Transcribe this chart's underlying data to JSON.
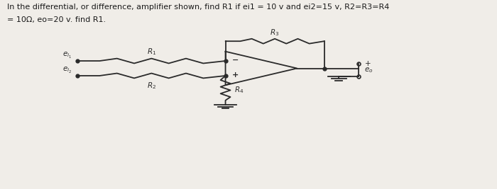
{
  "title_line1": "In the differential, or difference, amplifier shown, find R1 if ei1 = 10 v and ei2=15 v, R2=R3=R4",
  "title_line2": "= 10Ω, eo=20 v. find R1.",
  "bg_color": "#f0ede8",
  "text_color": "#1a1a1a",
  "circuit_color": "#2a2a2a",
  "fig_width": 7.0,
  "fig_height": 2.67,
  "dpi": 100,
  "lw": 1.3,
  "fs_title": 8.0,
  "fs_label": 7.5,
  "fs_sign": 8.0
}
